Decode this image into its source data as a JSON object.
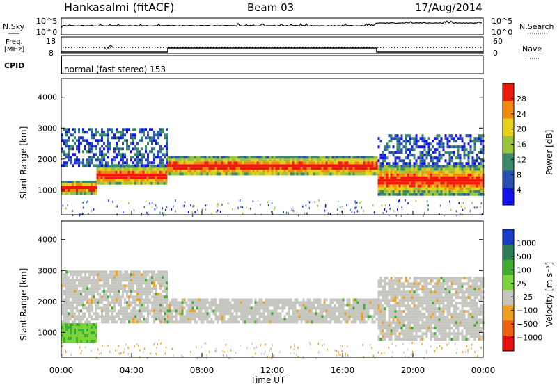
{
  "header": {
    "station": "Hankasalmi (fitACF)",
    "beam": "Beam 03",
    "date": "17/Aug/2014"
  },
  "strip": {
    "nsky_label": "N.Sky",
    "nsearch_label": "N.Search",
    "freq_label_1": "Freq.",
    "freq_label_2": "[MHz]",
    "nave_label": "Nave",
    "cpid_label": "CPID",
    "cpid_text": "normal (fast stereo) 153",
    "count_ticks": [
      "10^5",
      "10^0"
    ],
    "freq_ticks": [
      "18",
      "8"
    ],
    "nave_ticks": [
      "60",
      "0"
    ]
  },
  "chart_data": [
    {
      "type": "heatmap",
      "panel": "power",
      "ylabel": "Slant Range [km]",
      "xlabel": "",
      "ylim": [
        200,
        4600
      ],
      "yticks": [
        "1000",
        "2000",
        "3000",
        "4000"
      ],
      "colorbar_label": "Power [dB]",
      "colorbar_ticks": [
        "4",
        "8",
        "12",
        "16",
        "20",
        "24",
        "28"
      ],
      "colorbar_colors": [
        "#1212ee",
        "#2850b0",
        "#3a8a6a",
        "#9ac43a",
        "#e6d21a",
        "#f28a10",
        "#ee1a0c"
      ],
      "bands": [
        {
          "t": [
            0,
            2
          ],
          "range": [
            900,
            1300
          ],
          "level": "high"
        },
        {
          "t": [
            2,
            6
          ],
          "range": [
            1200,
            1800
          ],
          "level": "high"
        },
        {
          "t": [
            6,
            18
          ],
          "range": [
            1500,
            2100
          ],
          "level": "high"
        },
        {
          "t": [
            18,
            24
          ],
          "range": [
            900,
            1800
          ],
          "level": "high"
        },
        {
          "t": [
            0,
            6
          ],
          "range": [
            1800,
            3000
          ],
          "level": "low"
        },
        {
          "t": [
            18,
            24
          ],
          "range": [
            1900,
            2800
          ],
          "level": "low"
        }
      ]
    },
    {
      "type": "heatmap",
      "panel": "velocity",
      "ylabel": "Slant Range [km]",
      "xlabel": "Time UT",
      "ylim": [
        200,
        4600
      ],
      "yticks": [
        "1000",
        "2000",
        "3000",
        "4000"
      ],
      "xticks": [
        "00:00",
        "04:00",
        "08:00",
        "12:00",
        "16:00",
        "20:00",
        "00:00"
      ],
      "xlim": [
        0,
        24
      ],
      "colorbar_label": "Velocity [m s⁻¹]",
      "colorbar_ticks": [
        "1000",
        "500",
        "100",
        "25",
        "−25",
        "−100",
        "−500",
        "−1000"
      ],
      "colorbar_colors": [
        "#1b3cc8",
        "#2a7f55",
        "#3fae2e",
        "#7ad43a",
        "#c6c6c0",
        "#f0a020",
        "#f06010",
        "#e81010"
      ],
      "bands": [
        {
          "t": [
            0,
            2
          ],
          "range": [
            700,
            1300
          ],
          "level": "green"
        },
        {
          "t": [
            0,
            6
          ],
          "range": [
            1300,
            3000
          ],
          "level": "grey"
        },
        {
          "t": [
            6,
            18
          ],
          "range": [
            1300,
            2100
          ],
          "level": "grey"
        },
        {
          "t": [
            18,
            24
          ],
          "range": [
            800,
            2800
          ],
          "level": "grey"
        }
      ]
    }
  ]
}
